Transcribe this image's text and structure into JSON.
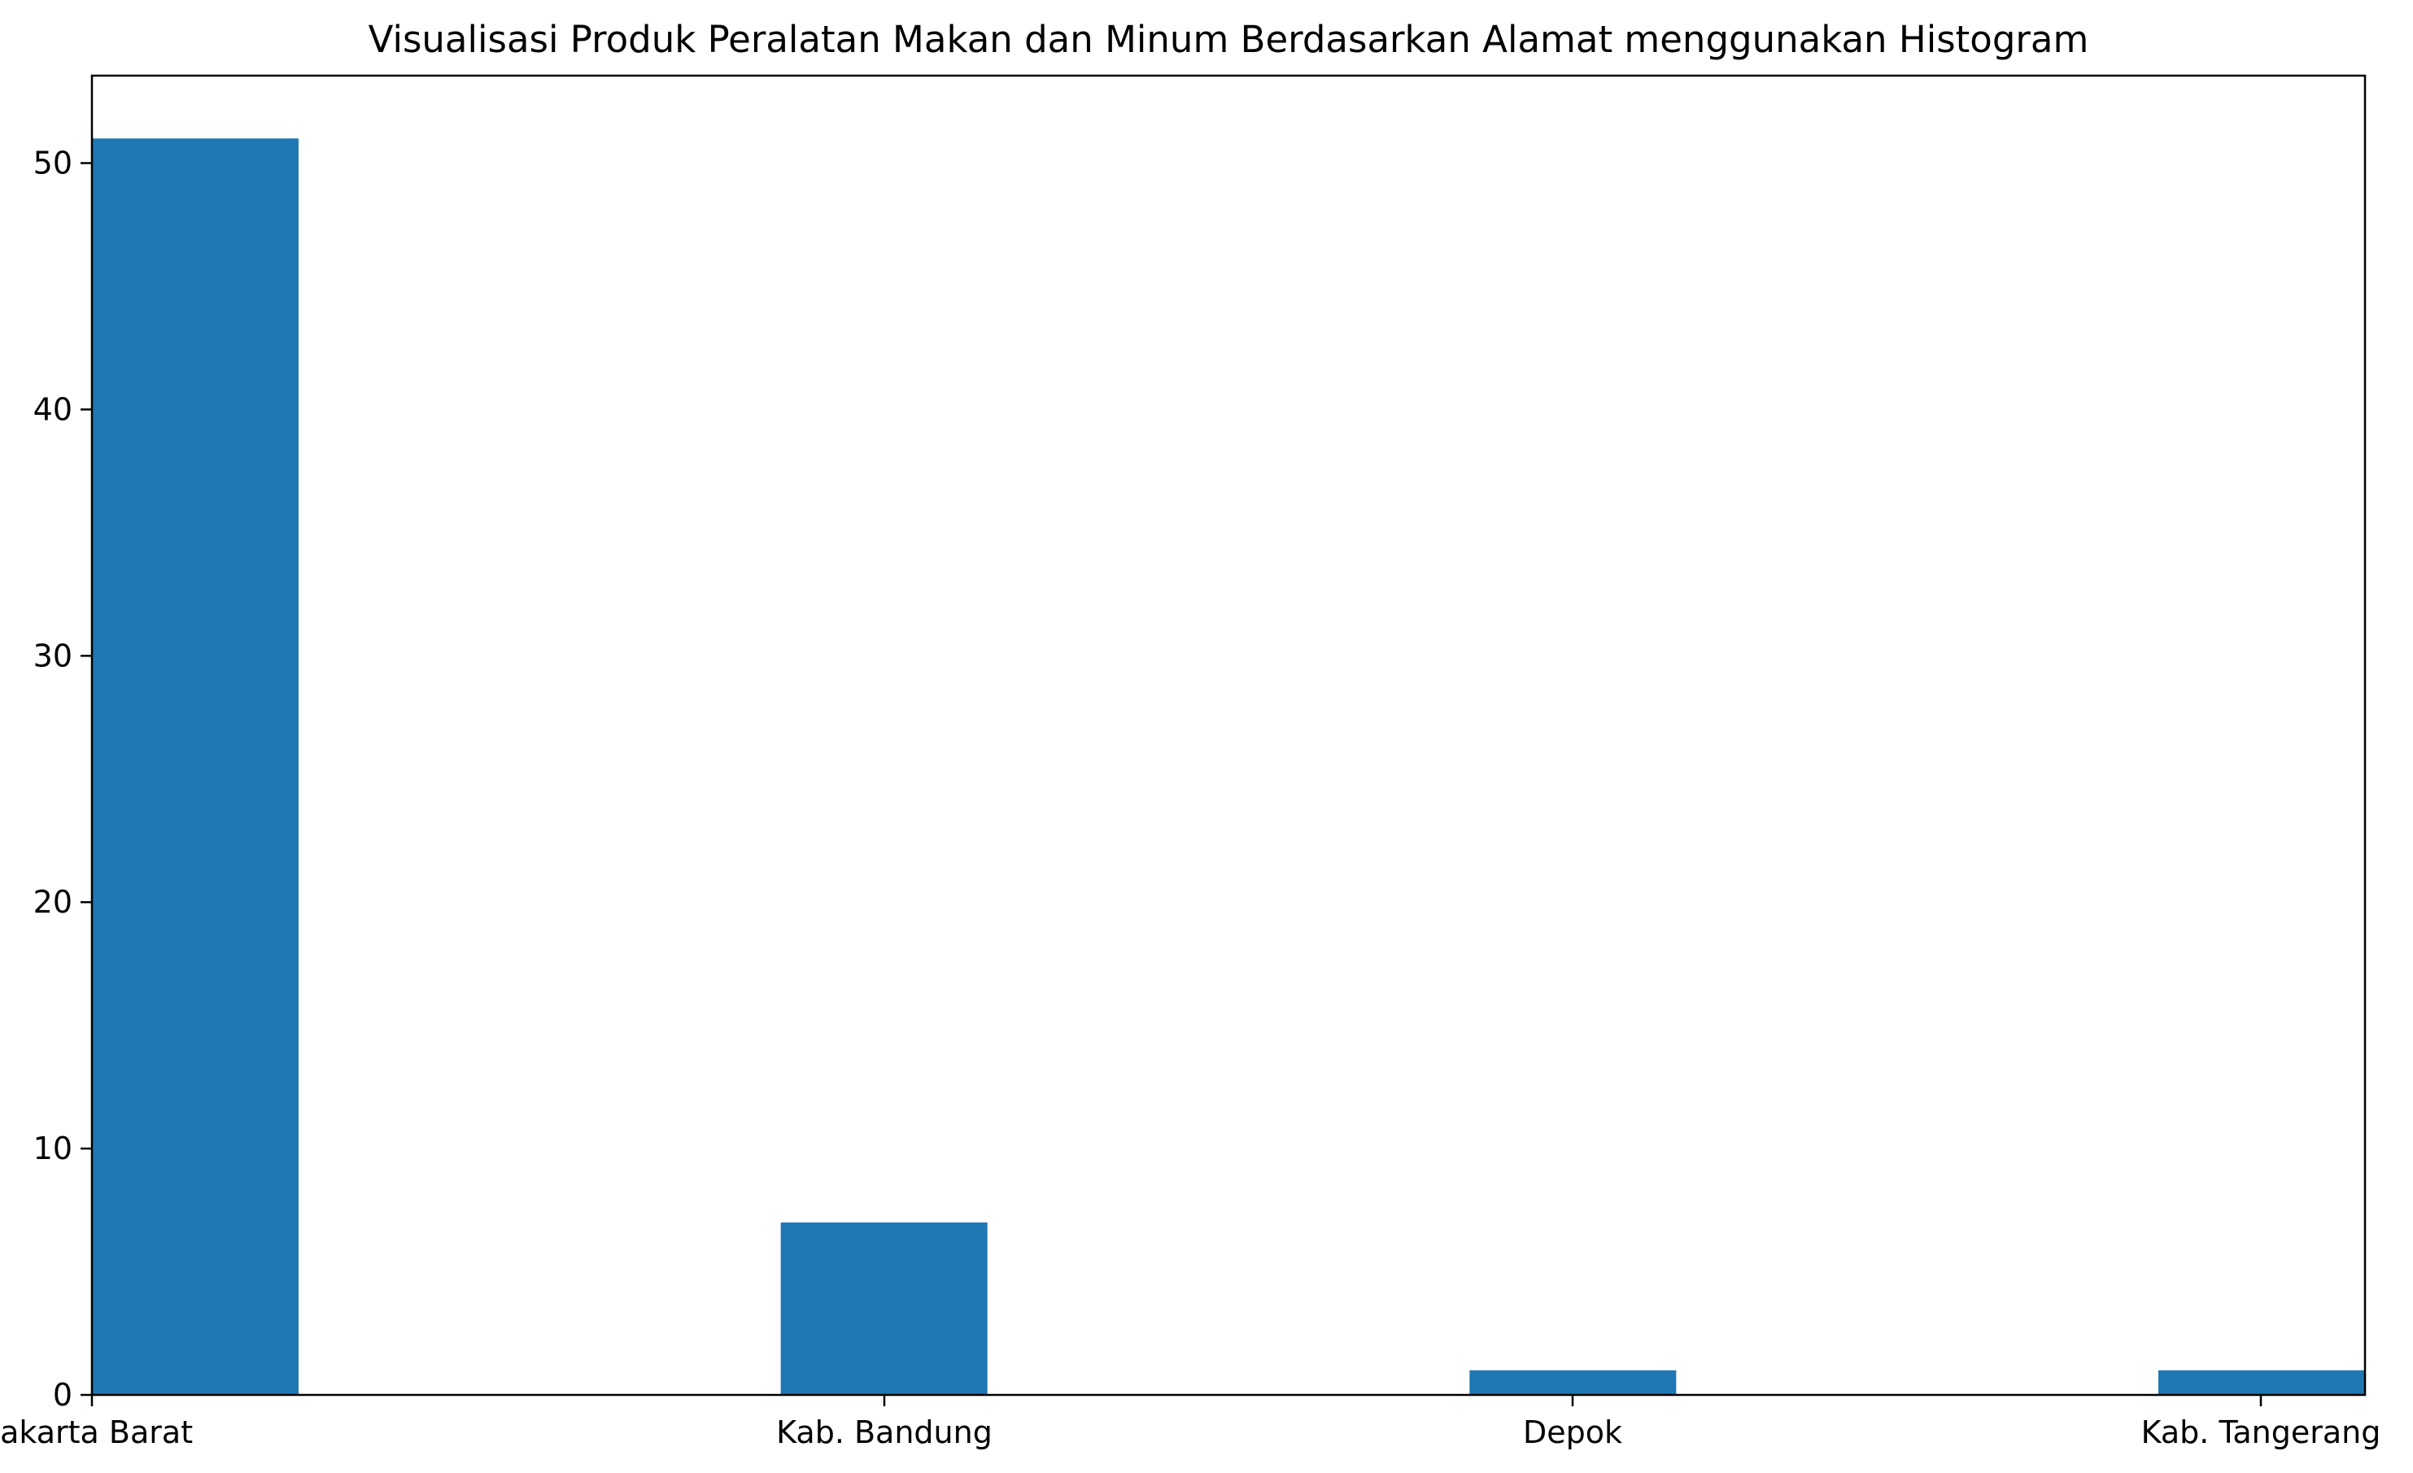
{
  "chart_data": {
    "type": "bar",
    "title": "Visualisasi Produk Peralatan Makan dan Minum Berdasarkan Alamat menggunakan Histogram",
    "xlabel": "",
    "ylabel": "",
    "categories": [
      "Jakarta Barat",
      "Kab. Bandung",
      "Depok",
      "Kab. Tangerang"
    ],
    "values": [
      51,
      7,
      1,
      1
    ],
    "ylim": [
      0,
      53.55
    ],
    "yticks": [
      0,
      10,
      20,
      30,
      40,
      50
    ],
    "grid": false,
    "bar_color": "#1f77b4",
    "axis_color": "#000000",
    "background": "#ffffff"
  }
}
